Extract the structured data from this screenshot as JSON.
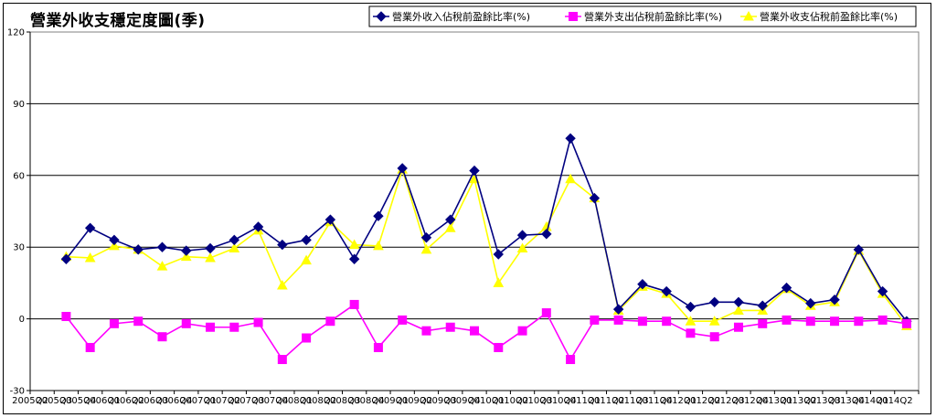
{
  "chart_data": {
    "type": "line",
    "title": "營業外收支穩定度圖(季)",
    "xlabel": "",
    "ylabel": "",
    "ylim": [
      -30,
      120
    ],
    "yticks": [
      -30,
      0,
      30,
      60,
      90,
      120
    ],
    "grid": true,
    "legend_position": "top-right",
    "categories": [
      "2005Q2",
      "2005Q3",
      "2005Q4",
      "2006Q1",
      "2006Q2",
      "2006Q3",
      "2006Q4",
      "2007Q1",
      "2007Q2",
      "2007Q3",
      "2007Q4",
      "2008Q1",
      "2008Q2",
      "2008Q3",
      "2008Q4",
      "2009Q1",
      "2009Q2",
      "2009Q3",
      "2009Q4",
      "2010Q1",
      "2010Q2",
      "2010Q3",
      "2010Q4",
      "2011Q1",
      "2011Q2",
      "2011Q3",
      "2011Q4",
      "2012Q1",
      "2012Q2",
      "2012Q3",
      "2012Q4",
      "2013Q1",
      "2013Q2",
      "2013Q3",
      "2013Q4",
      "2014Q1",
      "2014Q2"
    ],
    "tick_labels": [
      "2005Q2",
      "2005Q3",
      "2005Q4",
      "2006Q1",
      "2006Q2",
      "2006Q3",
      "2006Q4",
      "2007Q1",
      "2007Q2",
      "2007Q3",
      "2007Q4",
      "2008Q1",
      "2008Q2",
      "2008Q3",
      "2008Q4",
      "2009Q1",
      "2009Q2",
      "2009Q3",
      "2009Q4",
      "2010Q1",
      "2010Q2",
      "2010Q3",
      "2010Q4",
      "2011Q1",
      "2011Q2",
      "2011Q3",
      "2011Q4",
      "2012Q1",
      "2012Q2",
      "2012Q3",
      "2012Q4",
      "2013Q1",
      "2013Q2",
      "2013Q3",
      "2013Q4",
      "2014Q1",
      "2014Q2"
    ],
    "series": [
      {
        "name": "營業外收入佔稅前盈餘比率(%)",
        "color": "#000080",
        "marker": "diamond",
        "values": [
          null,
          25,
          38,
          33,
          29,
          30,
          28.5,
          29.5,
          33,
          38.5,
          31,
          33,
          41.5,
          25,
          43,
          63,
          34,
          41.5,
          62,
          27,
          35,
          35.5,
          75.5,
          50.5,
          4,
          14.5,
          11.5,
          5,
          7,
          7,
          5.5,
          13,
          6.5,
          8,
          29,
          11.5,
          -1
        ]
      },
      {
        "name": "營業外支出佔稅前盈餘比率(%)",
        "color": "#ff00ff",
        "marker": "square",
        "values": [
          null,
          1,
          -12,
          -2,
          -1,
          -7.5,
          -2,
          -3.5,
          -3.5,
          -1.5,
          -17,
          -8,
          -1,
          6,
          -12,
          -0.5,
          -5,
          -3.5,
          -5,
          -12,
          -5,
          2.5,
          -17,
          -0.5,
          -0.5,
          -1,
          -1,
          -6,
          -7.5,
          -3.5,
          -2,
          -0.5,
          -1,
          -1,
          -1,
          -0.5,
          -2
        ]
      },
      {
        "name": "營業外收支佔稅前盈餘比率(%)",
        "color": "#ffff00",
        "marker": "triangle",
        "values": [
          null,
          26,
          25.5,
          30.5,
          29,
          22,
          26,
          25.5,
          29.5,
          37,
          14,
          24.5,
          40.5,
          31,
          30.5,
          62.5,
          29,
          38,
          58.5,
          15,
          29.5,
          38.5,
          58.5,
          50.5,
          3.5,
          13.5,
          10.5,
          -1,
          -1,
          3.5,
          3.5,
          12.5,
          5.5,
          7,
          28.5,
          10.5,
          -3
        ]
      }
    ]
  }
}
